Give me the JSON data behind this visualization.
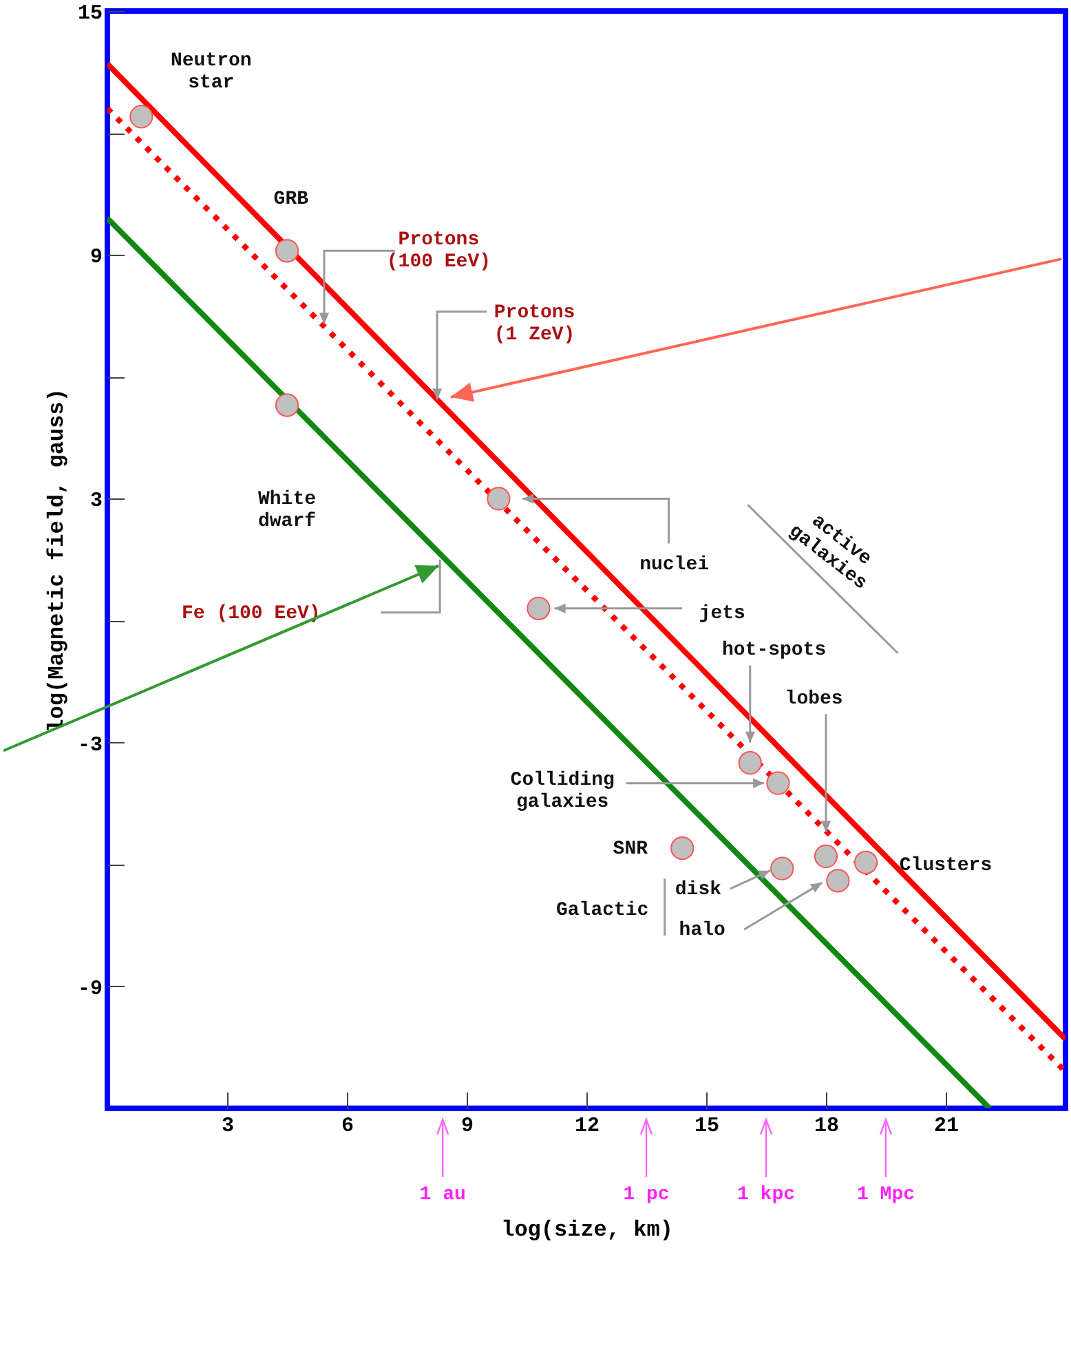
{
  "chart_data": {
    "type": "line",
    "xlabel": "log(size, km)",
    "ylabel": "log(Magnetic field, gauss)",
    "xlim": [
      0,
      24
    ],
    "ylim": [
      -12,
      15
    ],
    "xticks": [
      3,
      6,
      9,
      12,
      15,
      18,
      21
    ],
    "yticks": [
      15,
      {
        "value": 12,
        "label": null
      },
      9,
      {
        "value": 6,
        "label": null
      },
      3,
      {
        "value": 0,
        "label": null
      },
      -3,
      {
        "value": -6,
        "label": null
      },
      -9
    ],
    "grid": false,
    "series": [
      {
        "color": "#ff0000",
        "line_style": "solid",
        "x": [
          0,
          24
        ],
        "values": [
          13.7,
          -10.3
        ]
      },
      {
        "color": "#ff0000",
        "line_style": "dotted",
        "x": [
          0,
          24
        ],
        "values": [
          12.6,
          -11.1
        ]
      },
      {
        "color": "#118811",
        "line_style": "solid",
        "x": [
          0,
          22.1
        ],
        "values": [
          9.9,
          -12
        ]
      },
      {
        "type": "scatter",
        "color": "#c0c0c0",
        "marker": "circle",
        "x": [
          0.85,
          4.5,
          4.5,
          9.8,
          10.8,
          16.1,
          16.8,
          14.4,
          16.9,
          18.0,
          18.3,
          19.0
        ],
        "values": [
          12.4,
          9.1,
          5.3,
          3.0,
          0.3,
          -3.5,
          -4.0,
          -5.6,
          -6.1,
          -5.8,
          -6.4,
          -5.95
        ]
      }
    ],
    "annotations": [
      "Neutron\nstar",
      "GRB",
      {
        "text": "Protons\n(100 EeV)",
        "x": 5.43,
        "y": 7.3
      },
      {
        "text": "Protons\n(1 ZeV)",
        "x": 8.26,
        "y": 5.44
      },
      "White\ndwarf",
      {
        "text": "nuclei",
        "x": 10.4,
        "y": 3.0
      },
      {
        "text": "jets",
        "x": 11.2,
        "y": 0.3
      },
      "Fe (100 EeV)",
      "active\ngalaxies",
      {
        "text": "hot-spots",
        "x": 16.1,
        "y": -3.0
      },
      {
        "text": "lobes",
        "x": 18.0,
        "y": -5.2
      },
      {
        "text": "Colliding\ngalaxies",
        "x": 16.45,
        "y": -4.0
      },
      "SNR",
      "Galactic",
      {
        "text": "disk",
        "x": 16.6,
        "y": -6.15
      },
      {
        "text": "halo",
        "x": 17.9,
        "y": -6.45
      },
      "Clusters",
      "1 au",
      "1 pc",
      "1 kpc",
      "1 Mpc"
    ]
  }
}
